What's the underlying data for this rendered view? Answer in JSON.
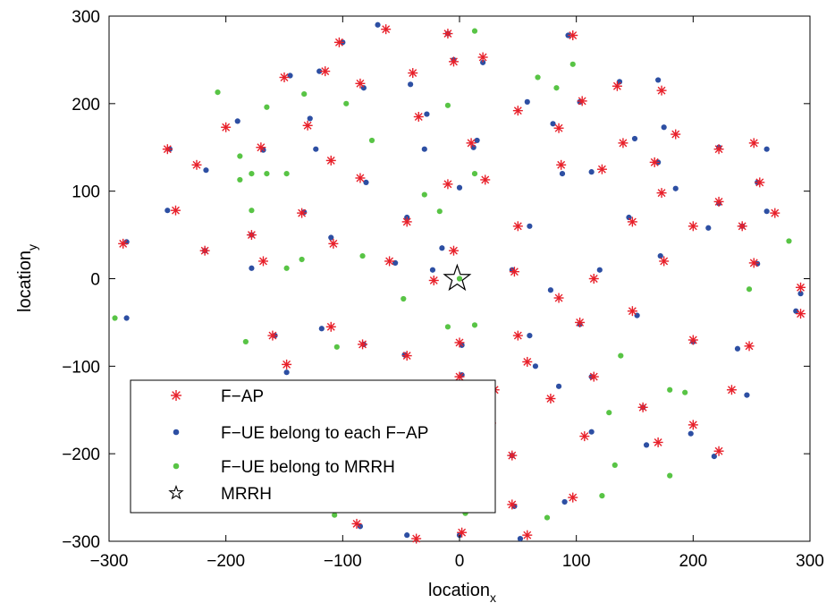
{
  "chart_data": {
    "type": "scatter",
    "title": "",
    "xlabel": "location",
    "xlabel_sub": "x",
    "ylabel": "location",
    "ylabel_sub": "y",
    "xlim": [
      -300,
      300
    ],
    "ylim": [
      -300,
      300
    ],
    "xticks": [
      -300,
      -200,
      -100,
      0,
      100,
      200,
      300
    ],
    "yticks": [
      -300,
      -200,
      -100,
      0,
      100,
      200,
      300
    ],
    "xtick_labels": [
      "−300",
      "−200",
      "−100",
      "0",
      "100",
      "200",
      "300"
    ],
    "ytick_labels": [
      "−300",
      "−200",
      "−100",
      "0",
      "100",
      "200",
      "300"
    ],
    "grid": false,
    "legend_position": "lower-left",
    "series": [
      {
        "name": "F−AP",
        "marker": "asterisk",
        "color": "#e8202a",
        "points": [
          [
            -103,
            270
          ],
          [
            -63,
            285
          ],
          [
            -10,
            280
          ],
          [
            97,
            278
          ],
          [
            -150,
            230
          ],
          [
            -115,
            237
          ],
          [
            -85,
            223
          ],
          [
            -40,
            235
          ],
          [
            -5,
            248
          ],
          [
            20,
            253
          ],
          [
            -200,
            173
          ],
          [
            -130,
            175
          ],
          [
            -35,
            185
          ],
          [
            50,
            192
          ],
          [
            105,
            203
          ],
          [
            135,
            220
          ],
          [
            173,
            215
          ],
          [
            85,
            172
          ],
          [
            140,
            155
          ],
          [
            185,
            165
          ],
          [
            -250,
            148
          ],
          [
            -170,
            150
          ],
          [
            -225,
            130
          ],
          [
            -110,
            135
          ],
          [
            -85,
            115
          ],
          [
            10,
            155
          ],
          [
            87,
            130
          ],
          [
            122,
            125
          ],
          [
            167,
            133
          ],
          [
            252,
            155
          ],
          [
            222,
            148
          ],
          [
            -243,
            78
          ],
          [
            -135,
            75
          ],
          [
            -45,
            65
          ],
          [
            -10,
            108
          ],
          [
            22,
            113
          ],
          [
            148,
            65
          ],
          [
            173,
            98
          ],
          [
            257,
            110
          ],
          [
            270,
            75
          ],
          [
            -288,
            40
          ],
          [
            -218,
            32
          ],
          [
            -178,
            50
          ],
          [
            -168,
            20
          ],
          [
            -108,
            40
          ],
          [
            -60,
            20
          ],
          [
            -5,
            32
          ],
          [
            50,
            60
          ],
          [
            200,
            60
          ],
          [
            222,
            88
          ],
          [
            242,
            60
          ],
          [
            -22,
            -2
          ],
          [
            47,
            8
          ],
          [
            85,
            -22
          ],
          [
            115,
            0
          ],
          [
            175,
            20
          ],
          [
            252,
            18
          ],
          [
            292,
            -10
          ],
          [
            292,
            -40
          ],
          [
            -110,
            -55
          ],
          [
            -160,
            -65
          ],
          [
            -148,
            -98
          ],
          [
            -83,
            -75
          ],
          [
            -45,
            -88
          ],
          [
            0,
            -73
          ],
          [
            50,
            -65
          ],
          [
            58,
            -95
          ],
          [
            103,
            -50
          ],
          [
            148,
            -37
          ],
          [
            200,
            -70
          ],
          [
            248,
            -77
          ],
          [
            0,
            -112
          ],
          [
            30,
            -127
          ],
          [
            78,
            -137
          ],
          [
            115,
            -112
          ],
          [
            157,
            -147
          ],
          [
            233,
            -127
          ],
          [
            27,
            -165
          ],
          [
            45,
            -202
          ],
          [
            107,
            -180
          ],
          [
            170,
            -187
          ],
          [
            200,
            -167
          ],
          [
            222,
            -197
          ],
          [
            45,
            -258
          ],
          [
            97,
            -250
          ],
          [
            -88,
            -280
          ],
          [
            -37,
            -297
          ],
          [
            2,
            -290
          ],
          [
            58,
            -293
          ]
        ]
      },
      {
        "name": "F−UE belong to each F−AP",
        "marker": "dot",
        "color": "#2d4fa3",
        "points": [
          [
            -70,
            290
          ],
          [
            -100,
            270
          ],
          [
            -10,
            280
          ],
          [
            93,
            278
          ],
          [
            -5,
            250
          ],
          [
            20,
            247
          ],
          [
            -120,
            237
          ],
          [
            -145,
            232
          ],
          [
            -82,
            218
          ],
          [
            -42,
            222
          ],
          [
            -190,
            180
          ],
          [
            -128,
            183
          ],
          [
            -28,
            188
          ],
          [
            58,
            202
          ],
          [
            103,
            202
          ],
          [
            137,
            225
          ],
          [
            170,
            227
          ],
          [
            80,
            177
          ],
          [
            175,
            173
          ],
          [
            150,
            160
          ],
          [
            -248,
            148
          ],
          [
            -217,
            124
          ],
          [
            -168,
            147
          ],
          [
            -123,
            148
          ],
          [
            -30,
            148
          ],
          [
            12,
            150
          ],
          [
            15,
            158
          ],
          [
            -80,
            110
          ],
          [
            0,
            104
          ],
          [
            88,
            120
          ],
          [
            113,
            122
          ],
          [
            170,
            133
          ],
          [
            222,
            150
          ],
          [
            263,
            148
          ],
          [
            -250,
            78
          ],
          [
            -133,
            76
          ],
          [
            -45,
            70
          ],
          [
            145,
            70
          ],
          [
            185,
            103
          ],
          [
            222,
            86
          ],
          [
            255,
            110
          ],
          [
            263,
            77
          ],
          [
            -285,
            42
          ],
          [
            -218,
            32
          ],
          [
            -178,
            50
          ],
          [
            -178,
            12
          ],
          [
            -110,
            47
          ],
          [
            -55,
            18
          ],
          [
            -15,
            35
          ],
          [
            60,
            60
          ],
          [
            213,
            58
          ],
          [
            242,
            60
          ],
          [
            -23,
            10
          ],
          [
            45,
            10
          ],
          [
            78,
            -13
          ],
          [
            120,
            10
          ],
          [
            172,
            26
          ],
          [
            255,
            17
          ],
          [
            292,
            -17
          ],
          [
            288,
            -37
          ],
          [
            -118,
            -57
          ],
          [
            -158,
            -65
          ],
          [
            -148,
            -107
          ],
          [
            -82,
            -75
          ],
          [
            -47,
            -87
          ],
          [
            2,
            -76
          ],
          [
            60,
            -65
          ],
          [
            65,
            -100
          ],
          [
            103,
            -52
          ],
          [
            152,
            -42
          ],
          [
            200,
            -72
          ],
          [
            238,
            -80
          ],
          [
            2,
            -110
          ],
          [
            85,
            -123
          ],
          [
            113,
            -112
          ],
          [
            157,
            -147
          ],
          [
            246,
            -133
          ],
          [
            45,
            -202
          ],
          [
            113,
            -175
          ],
          [
            160,
            -190
          ],
          [
            198,
            -177
          ],
          [
            218,
            -203
          ],
          [
            47,
            -260
          ],
          [
            90,
            -255
          ],
          [
            -85,
            -283
          ],
          [
            -45,
            -293
          ],
          [
            0,
            -293
          ],
          [
            52,
            -297
          ],
          [
            -285,
            -45
          ]
        ]
      },
      {
        "name": "F−UE belong to MRRH",
        "marker": "dot",
        "color": "#58c445",
        "points": [
          [
            13,
            283
          ],
          [
            -207,
            213
          ],
          [
            -133,
            211
          ],
          [
            -165,
            196
          ],
          [
            -97,
            200
          ],
          [
            -10,
            198
          ],
          [
            67,
            230
          ],
          [
            83,
            218
          ],
          [
            97,
            245
          ],
          [
            -178,
            120
          ],
          [
            -188,
            113
          ],
          [
            -165,
            120
          ],
          [
            -188,
            140
          ],
          [
            -148,
            120
          ],
          [
            -75,
            158
          ],
          [
            -30,
            96
          ],
          [
            -17,
            77
          ],
          [
            13,
            120
          ],
          [
            -178,
            78
          ],
          [
            -135,
            22
          ],
          [
            -148,
            12
          ],
          [
            -83,
            26
          ],
          [
            -48,
            -23
          ],
          [
            0,
            0
          ],
          [
            -10,
            -55
          ],
          [
            13,
            -53
          ],
          [
            -183,
            -72
          ],
          [
            -105,
            -78
          ],
          [
            138,
            -88
          ],
          [
            180,
            -127
          ],
          [
            193,
            -130
          ],
          [
            128,
            -153
          ],
          [
            133,
            -213
          ],
          [
            122,
            -248
          ],
          [
            180,
            -225
          ],
          [
            75,
            -273
          ],
          [
            -107,
            -270
          ],
          [
            5,
            -268
          ],
          [
            282,
            43
          ],
          [
            248,
            -12
          ],
          [
            -295,
            -45
          ]
        ]
      },
      {
        "name": "MRRH",
        "marker": "star",
        "color": "#000000",
        "points": [
          [
            -2,
            0
          ]
        ]
      }
    ]
  }
}
